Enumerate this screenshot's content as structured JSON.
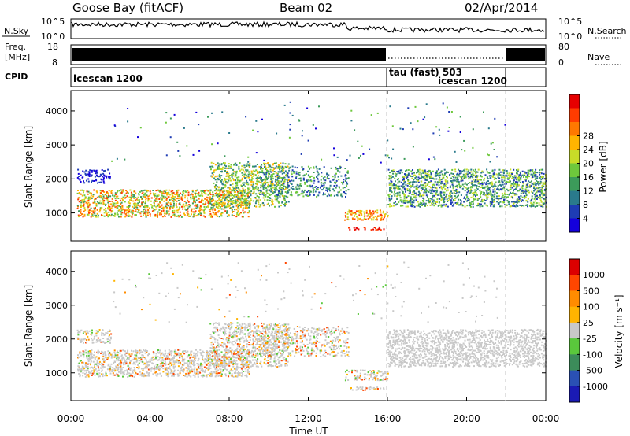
{
  "header": {
    "station": "Goose Bay (fitACF)",
    "beam": "Beam 02",
    "date": "02/Apr/2014"
  },
  "strips": {
    "nsky": {
      "label": "N.Sky",
      "ticks": [
        "10^5",
        "10^0"
      ]
    },
    "nsearch": {
      "label": "N.Search",
      "ticks": [
        "10^5",
        "10^0"
      ]
    },
    "freq": {
      "label_1": "Freq.",
      "label_2": "[MHz]",
      "ticks": [
        "18",
        "8"
      ]
    },
    "nave": {
      "label": "Nave",
      "ticks": [
        "80",
        "0"
      ]
    },
    "cpid": {
      "label": "CPID",
      "segments": [
        {
          "start": "00:00",
          "end": "16:00",
          "name": "icescan 1200"
        },
        {
          "start": "16:00",
          "end": "21:50",
          "name": "tau (fast) 503"
        },
        {
          "start": "16:00",
          "end": "21:50",
          "name": "icescan 1200"
        }
      ]
    }
  },
  "chart_data": [
    {
      "type": "heatmap",
      "ylabel": "Slant Range [km]",
      "xlabel": "Time UT",
      "xticks": [
        "00:00",
        "04:00",
        "08:00",
        "12:00",
        "16:00",
        "20:00",
        "00:00"
      ],
      "yticks": [
        "1000",
        "2000",
        "3000",
        "4000"
      ],
      "ylim": [
        180,
        4600
      ],
      "colorbar": {
        "title": "Power [dB]",
        "ticks": [
          "4",
          "8",
          "12",
          "16",
          "20",
          "24",
          "28"
        ],
        "colors": [
          "#1400dc",
          "#1e3cb4",
          "#2a7a8c",
          "#3c9b5a",
          "#6ec83c",
          "#c8dc28",
          "#ffb400",
          "#ff7800",
          "#ff3c00",
          "#e60000"
        ]
      }
    },
    {
      "type": "heatmap",
      "ylabel": "Slant Range [km]",
      "xlabel": "Time UT",
      "xticks": [
        "00:00",
        "04:00",
        "08:00",
        "12:00",
        "16:00",
        "20:00",
        "00:00"
      ],
      "yticks": [
        "1000",
        "2000",
        "3000",
        "4000"
      ],
      "ylim": [
        180,
        4600
      ],
      "colorbar": {
        "title": "Velocity [m s⁻¹]",
        "ticks": [
          "1000",
          "500",
          "100",
          "25",
          "-25",
          "-100",
          "-500",
          "-1000"
        ],
        "colors": [
          "#1a1ab4",
          "#2a50b4",
          "#3c8c5a",
          "#5ac83c",
          "#c8c8c8",
          "#ffb400",
          "#ff8c00",
          "#ff4600",
          "#dc0000"
        ]
      }
    }
  ],
  "axis": {
    "xlabel": "Time UT"
  }
}
